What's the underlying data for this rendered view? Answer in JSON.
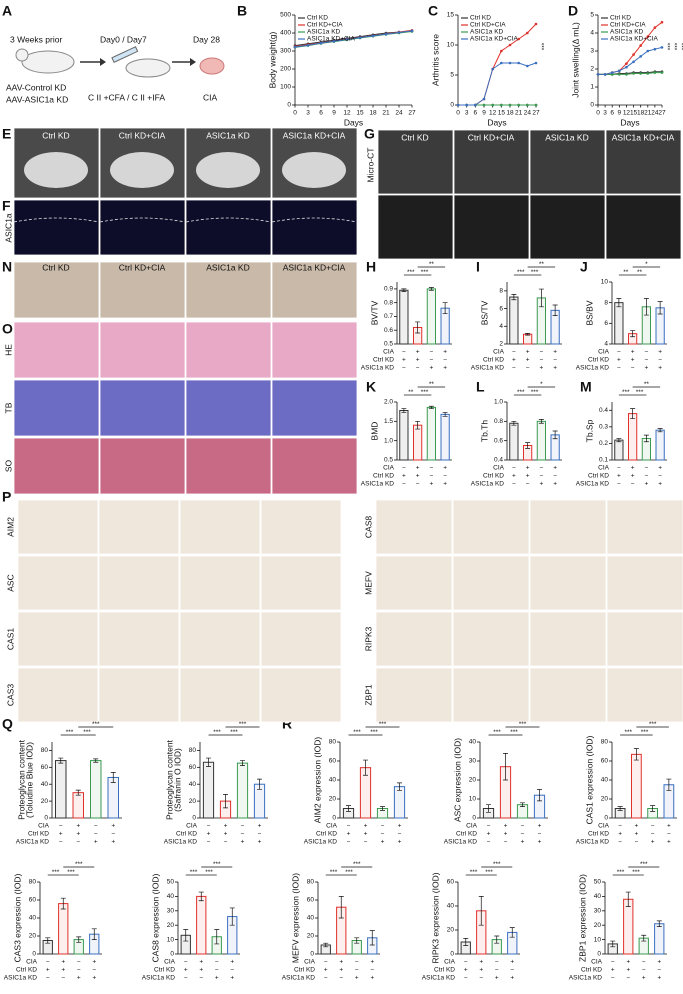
{
  "figure": {
    "panel_letters": [
      "A",
      "B",
      "C",
      "D",
      "E",
      "F",
      "G",
      "N",
      "O",
      "H",
      "I",
      "J",
      "K",
      "L",
      "M",
      "P",
      "Q",
      "R"
    ],
    "schematic": {
      "step1": "3 Weeks prior",
      "step1_sub": [
        "AAV-Control KD",
        "AAV-ASIC1a KD"
      ],
      "step2": "Day0 / Day7",
      "step2_sub": "C II +CFA / C II +IFA",
      "step3": "Day 28",
      "step3_sub": "CIA"
    },
    "groups": [
      "Ctrl KD",
      "Ctrl KD+CIA",
      "ASIC1a KD",
      "ASIC1a KD+CIA"
    ],
    "group_colors": [
      "#333333",
      "#e0302a",
      "#3a9a50",
      "#3a6fc0"
    ],
    "f_label": "ASIC1a",
    "g_label": "Micro-CT",
    "o_stains": [
      "HE",
      "TB",
      "SO"
    ],
    "p_left": [
      "AIM2",
      "ASC",
      "CAS1",
      "CAS3"
    ],
    "p_right": [
      "CAS8",
      "MEFV",
      "RIPK3",
      "ZBP1"
    ],
    "conditions": [
      {
        "label": "CIA",
        "signs": [
          "−",
          "+",
          "−",
          "+"
        ]
      },
      {
        "label": "Ctrl KD",
        "signs": [
          "+",
          "+",
          "−",
          "−"
        ]
      },
      {
        "label": "ASIC1a KD",
        "signs": [
          "−",
          "−",
          "+",
          "+"
        ]
      }
    ]
  },
  "chart_data": [
    {
      "type": "line",
      "ylabel": "Body weight(g)",
      "xlabel": "Days",
      "x": [
        0,
        3,
        6,
        9,
        12,
        15,
        18,
        21,
        24,
        27
      ],
      "xlim": [
        0,
        27
      ],
      "xticks": [
        0,
        3,
        6,
        9,
        12,
        15,
        18,
        21,
        24,
        27
      ],
      "ylim": [
        0,
        500
      ],
      "yticks": [
        0,
        100,
        200,
        300,
        400,
        500
      ],
      "significance": [],
      "series": [
        {
          "name": "Ctrl KD",
          "color": "#333333",
          "values": [
            330,
            340,
            350,
            360,
            370,
            380,
            390,
            400,
            405,
            410
          ]
        },
        {
          "name": "Ctrl KD+CIA",
          "color": "#e0302a",
          "values": [
            325,
            335,
            345,
            355,
            365,
            375,
            385,
            395,
            405,
            415
          ]
        },
        {
          "name": "ASIC1a KD",
          "color": "#3a9a50",
          "values": [
            320,
            330,
            342,
            352,
            362,
            372,
            382,
            392,
            400,
            408
          ]
        },
        {
          "name": "ASIC1a KD+CIA",
          "color": "#3a6fc0",
          "values": [
            322,
            332,
            344,
            354,
            364,
            374,
            384,
            394,
            403,
            412
          ]
        }
      ]
    },
    {
      "type": "line",
      "ylabel": "Arthritis score",
      "xlabel": "Days",
      "x": [
        0,
        3,
        6,
        9,
        12,
        15,
        18,
        21,
        24,
        27
      ],
      "xlim": [
        0,
        27
      ],
      "xticks": [
        0,
        3,
        6,
        9,
        12,
        15,
        18,
        21,
        24,
        27
      ],
      "ylim": [
        0,
        15
      ],
      "yticks": [
        0,
        5,
        10,
        15
      ],
      "significance": [
        "***"
      ],
      "series": [
        {
          "name": "Ctrl KD",
          "color": "#333333",
          "values": [
            0,
            0,
            0,
            0,
            0,
            0,
            0,
            0,
            0,
            0
          ]
        },
        {
          "name": "Ctrl KD+CIA",
          "color": "#e0302a",
          "values": [
            0,
            0,
            0,
            1,
            6,
            9,
            10,
            11,
            12,
            13.5
          ]
        },
        {
          "name": "ASIC1a KD",
          "color": "#3a9a50",
          "values": [
            0,
            0,
            0,
            0,
            0,
            0,
            0,
            0,
            0,
            0
          ]
        },
        {
          "name": "ASIC1a KD+CIA",
          "color": "#3a6fc0",
          "values": [
            0,
            0,
            0,
            1,
            6,
            7,
            7,
            7,
            6.5,
            7
          ]
        }
      ]
    },
    {
      "type": "line",
      "ylabel": "Joint swelling(Δ mL)",
      "xlabel": "Days",
      "x": [
        0,
        3,
        6,
        9,
        12,
        15,
        18,
        21,
        24,
        27
      ],
      "xlim": [
        0,
        27
      ],
      "xticks": [
        0,
        3,
        6,
        9,
        12,
        15,
        18,
        21,
        24,
        27
      ],
      "ylim": [
        0,
        5
      ],
      "yticks": [
        0,
        1,
        2,
        3,
        4,
        5
      ],
      "significance": [
        "***",
        "***",
        "***"
      ],
      "series": [
        {
          "name": "Ctrl KD",
          "color": "#333333",
          "values": [
            1.7,
            1.7,
            1.7,
            1.75,
            1.75,
            1.8,
            1.8,
            1.8,
            1.85,
            1.85
          ]
        },
        {
          "name": "Ctrl KD+CIA",
          "color": "#e0302a",
          "values": [
            1.7,
            1.7,
            1.8,
            1.9,
            2.3,
            2.8,
            3.3,
            3.8,
            4.3,
            4.6
          ]
        },
        {
          "name": "ASIC1a KD",
          "color": "#3a9a50",
          "values": [
            1.7,
            1.7,
            1.7,
            1.7,
            1.7,
            1.75,
            1.75,
            1.75,
            1.8,
            1.8
          ]
        },
        {
          "name": "ASIC1a KD+CIA",
          "color": "#3a6fc0",
          "values": [
            1.7,
            1.7,
            1.8,
            1.9,
            2.1,
            2.4,
            2.7,
            3.0,
            3.1,
            3.2
          ]
        }
      ]
    },
    {
      "type": "bar",
      "ylabel": "BV/TV",
      "ylim": [
        0.5,
        0.95
      ],
      "yticks": [
        0.5,
        0.6,
        0.7,
        0.8,
        0.9
      ],
      "values": [
        0.89,
        0.62,
        0.9,
        0.76
      ],
      "errors": [
        0.01,
        0.04,
        0.01,
        0.04
      ],
      "significance": [
        "***",
        "***",
        "**"
      ]
    },
    {
      "type": "bar",
      "ylabel": "BS/TV",
      "ylim": [
        2,
        9
      ],
      "yticks": [
        2,
        4,
        6,
        8
      ],
      "values": [
        7.3,
        3.1,
        7.2,
        5.8
      ],
      "errors": [
        0.3,
        0.1,
        1.0,
        0.6
      ],
      "significance": [
        "***",
        "***",
        "**"
      ]
    },
    {
      "type": "bar",
      "ylabel": "BS/BV",
      "ylim": [
        4,
        10
      ],
      "yticks": [
        4,
        6,
        8,
        10
      ],
      "values": [
        8.0,
        5.0,
        7.6,
        7.5
      ],
      "errors": [
        0.4,
        0.3,
        0.8,
        0.6
      ],
      "significance": [
        "**",
        "**",
        "*"
      ]
    },
    {
      "type": "bar",
      "ylabel": "BMD",
      "ylim": [
        0.5,
        2.0
      ],
      "yticks": [
        0.5,
        {
          "value": 1,
          "label": "1.0"
        },
        1.5,
        {
          "value": 2,
          "label": "2.0"
        }
      ],
      "values": [
        1.78,
        1.4,
        1.86,
        1.68
      ],
      "errors": [
        0.05,
        0.1,
        0.03,
        0.05
      ],
      "significance": [
        "**",
        "***",
        "**"
      ]
    },
    {
      "type": "bar",
      "ylabel": "Tb.Th",
      "ylim": [
        0.4,
        1.0
      ],
      "yticks": [
        0.4,
        0.6,
        0.8,
        {
          "value": 1,
          "label": "1.0"
        }
      ],
      "values": [
        0.78,
        0.55,
        0.8,
        0.66
      ],
      "errors": [
        0.02,
        0.03,
        0.02,
        0.04
      ],
      "significance": [
        "***",
        "***",
        "*"
      ]
    },
    {
      "type": "bar",
      "ylabel": "Tb.Sp",
      "ylim": [
        0.1,
        0.45
      ],
      "yticks": [
        0.1,
        0.2,
        0.3,
        0.4
      ],
      "values": [
        0.22,
        0.38,
        0.23,
        0.28
      ],
      "errors": [
        0.01,
        0.03,
        0.02,
        0.01
      ],
      "significance": [
        "***",
        "***",
        "**"
      ]
    },
    {
      "type": "bar",
      "ylabel": [
        "Proteoglycan content",
        "(Toluidine Blue IOD)"
      ],
      "ylim": [
        0,
        90
      ],
      "yticks": [
        0,
        20,
        40,
        60,
        80
      ],
      "values": [
        68,
        30,
        68,
        48
      ],
      "errors": [
        3,
        3,
        2,
        6
      ],
      "significance": [
        "***",
        "***",
        "***"
      ]
    },
    {
      "type": "bar",
      "ylabel": [
        "Proteoglycan content",
        "(Safranin O IOD)"
      ],
      "ylim": [
        0,
        90
      ],
      "yticks": [
        0,
        20,
        40,
        60,
        80
      ],
      "values": [
        66,
        20,
        65,
        40
      ],
      "errors": [
        5,
        8,
        3,
        6
      ],
      "significance": [
        "***",
        "***",
        "***"
      ]
    },
    {
      "type": "bar",
      "ylabel": "AIM2 expression (IOD)",
      "ylim": [
        0,
        80
      ],
      "yticks": [
        0,
        20,
        40,
        60,
        80
      ],
      "values": [
        10,
        53,
        10,
        33
      ],
      "errors": [
        3,
        8,
        2,
        4
      ],
      "significance": [
        "***",
        "***",
        "***"
      ]
    },
    {
      "type": "bar",
      "ylabel": "ASC expression (IOD)",
      "ylim": [
        0,
        40
      ],
      "yticks": [
        0,
        10,
        20,
        30,
        40
      ],
      "values": [
        5,
        27,
        7,
        12
      ],
      "errors": [
        2,
        7,
        1,
        3
      ],
      "significance": [
        "***",
        "***",
        "***"
      ]
    },
    {
      "type": "bar",
      "ylabel": "CAS1 expression (IOD)",
      "ylim": [
        0,
        80
      ],
      "yticks": [
        0,
        20,
        40,
        60,
        80
      ],
      "values": [
        10,
        67,
        10,
        35
      ],
      "errors": [
        2,
        6,
        3,
        6
      ],
      "significance": [
        "***",
        "***",
        "***"
      ]
    },
    {
      "type": "bar",
      "ylabel": "CAS3 expression (IOD)",
      "ylim": [
        0,
        80
      ],
      "yticks": [
        0,
        20,
        40,
        60,
        80
      ],
      "values": [
        15,
        56,
        16,
        22
      ],
      "errors": [
        3,
        6,
        3,
        6
      ],
      "significance": [
        "***",
        "***",
        "***"
      ]
    },
    {
      "type": "bar",
      "ylabel": "CAS8 expression (IOD)",
      "ylim": [
        0,
        50
      ],
      "yticks": [
        0,
        10,
        20,
        30,
        40,
        50
      ],
      "values": [
        13,
        40,
        12,
        26
      ],
      "errors": [
        4,
        3,
        5,
        6
      ],
      "significance": [
        "***",
        "***",
        "***"
      ]
    },
    {
      "type": "bar",
      "ylabel": "MEFV expression (IOD)",
      "ylim": [
        0,
        80
      ],
      "yticks": [
        0,
        20,
        40,
        60,
        80
      ],
      "values": [
        10,
        52,
        15,
        18
      ],
      "errors": [
        2,
        12,
        3,
        8
      ],
      "significance": [
        "***",
        "***",
        "***"
      ]
    },
    {
      "type": "bar",
      "ylabel": "RIPK3 expression (IOD)",
      "ylim": [
        0,
        60
      ],
      "yticks": [
        0,
        20,
        40,
        60
      ],
      "values": [
        10,
        36,
        12,
        18
      ],
      "errors": [
        3,
        12,
        3,
        4
      ],
      "significance": [
        "***",
        "***",
        "***"
      ]
    },
    {
      "type": "bar",
      "ylabel": "ZBP1 expression (IOD)",
      "ylim": [
        0,
        50
      ],
      "yticks": [
        0,
        10,
        20,
        30,
        40,
        50
      ],
      "values": [
        7,
        38,
        11,
        21
      ],
      "errors": [
        2,
        5,
        2,
        2
      ],
      "significance": [
        "***",
        "***",
        "***"
      ]
    }
  ]
}
